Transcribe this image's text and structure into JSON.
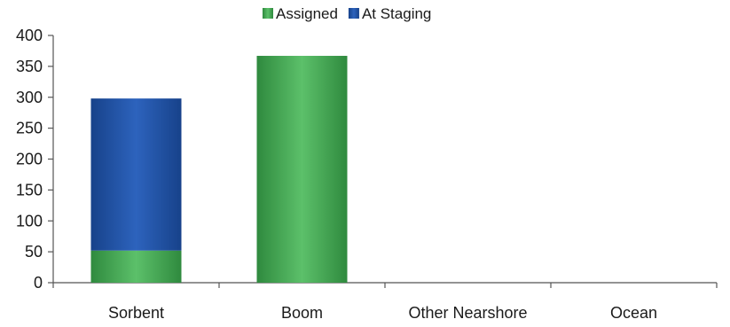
{
  "chart_data": {
    "type": "bar",
    "stacked": true,
    "title": "",
    "xlabel": "",
    "ylabel": "",
    "categories": [
      "Sorbent",
      "Boom",
      "Other Nearshore",
      "Ocean"
    ],
    "series": [
      {
        "name": "Assigned",
        "color": "#3a9a4a",
        "values": [
          52,
          367,
          0,
          0
        ]
      },
      {
        "name": "At Staging",
        "color": "#1f4fa0",
        "values": [
          246,
          0,
          0,
          0
        ]
      }
    ],
    "ylim": [
      0,
      400
    ],
    "yticks": [
      0,
      50,
      100,
      150,
      200,
      250,
      300,
      350,
      400
    ],
    "legend_position": "top-center",
    "grid": false
  }
}
